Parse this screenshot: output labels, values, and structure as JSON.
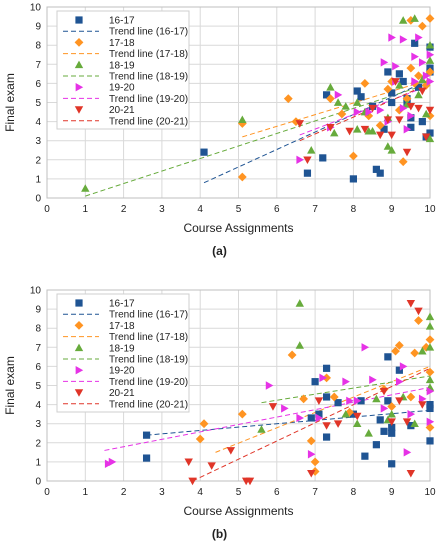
{
  "chart_data": [
    {
      "type": "scatter",
      "caption": "(a)",
      "xlabel": "Course Assignments",
      "ylabel": "Final exam",
      "xlim": [
        0,
        10
      ],
      "ylim": [
        0,
        10
      ],
      "xticks": [
        "0",
        "1",
        "2",
        "3",
        "4",
        "5",
        "6",
        "7",
        "8",
        "9",
        "10"
      ],
      "yticks": [
        "0",
        "1",
        "2",
        "3",
        "4",
        "5",
        "6",
        "7",
        "8",
        "9",
        "10"
      ],
      "grid": true,
      "legend_position": "top-left",
      "series": [
        {
          "name": "16-17",
          "color": "#1f5493",
          "marker": "square",
          "trend_name": "Trend line (16-17)",
          "trend": [
            [
              4.1,
              0.8
            ],
            [
              10,
              6.2
            ]
          ],
          "points": [
            [
              4.1,
              2.4
            ],
            [
              6.8,
              1.3
            ],
            [
              7.2,
              2.1
            ],
            [
              7.3,
              5.4
            ],
            [
              8.0,
              1.0
            ],
            [
              8.1,
              5.6
            ],
            [
              8.2,
              5.3
            ],
            [
              8.5,
              4.8
            ],
            [
              8.6,
              1.5
            ],
            [
              8.7,
              1.3
            ],
            [
              8.8,
              3.6
            ],
            [
              8.9,
              6.6
            ],
            [
              9.0,
              5.5
            ],
            [
              9.2,
              6.5
            ],
            [
              9.4,
              5.0
            ],
            [
              9.4,
              5.2
            ],
            [
              9.5,
              3.7
            ],
            [
              9.5,
              4.2
            ],
            [
              9.6,
              8.1
            ],
            [
              9.7,
              5.8
            ],
            [
              9.8,
              4.0
            ],
            [
              9.9,
              3.2
            ],
            [
              10.0,
              3.4
            ],
            [
              10.0,
              6.6
            ],
            [
              10.0,
              7.9
            ],
            [
              10.0,
              6.8
            ],
            [
              9.0,
              5.0
            ],
            [
              9.3,
              6.1
            ]
          ]
        },
        {
          "name": "17-18",
          "color": "#ff9422",
          "marker": "diamond",
          "trend_name": "Trend line (17-18)",
          "trend": [
            [
              5.1,
              3.2
            ],
            [
              10,
              6.2
            ]
          ],
          "points": [
            [
              5.1,
              1.1
            ],
            [
              5.1,
              3.9
            ],
            [
              6.3,
              5.2
            ],
            [
              6.5,
              4.0
            ],
            [
              7.4,
              5.2
            ],
            [
              7.7,
              4.4
            ],
            [
              8.0,
              2.2
            ],
            [
              8.3,
              6.0
            ],
            [
              8.4,
              4.3
            ],
            [
              8.7,
              3.8
            ],
            [
              8.9,
              5.7
            ],
            [
              9.0,
              6.1
            ],
            [
              9.2,
              4.6
            ],
            [
              9.3,
              1.9
            ],
            [
              9.4,
              5.2
            ],
            [
              9.5,
              6.8
            ],
            [
              9.5,
              9.3
            ],
            [
              9.6,
              6.0
            ],
            [
              9.7,
              6.4
            ],
            [
              9.8,
              9.0
            ],
            [
              9.9,
              5.9
            ],
            [
              10.0,
              9.4
            ],
            [
              10.0,
              6.6
            ],
            [
              10.0,
              4.3
            ]
          ]
        },
        {
          "name": "18-19",
          "color": "#67ab3c",
          "marker": "triangle-up",
          "trend_name": "Trend line (18-19)",
          "trend": [
            [
              1.0,
              0.1
            ],
            [
              10,
              6.0
            ]
          ],
          "points": [
            [
              1.0,
              0.5
            ],
            [
              5.1,
              4.1
            ],
            [
              6.9,
              2.5
            ],
            [
              7.4,
              5.8
            ],
            [
              7.5,
              3.4
            ],
            [
              7.6,
              5.0
            ],
            [
              7.8,
              4.8
            ],
            [
              8.1,
              3.6
            ],
            [
              8.1,
              5.0
            ],
            [
              8.3,
              4.5
            ],
            [
              8.4,
              3.5
            ],
            [
              8.5,
              3.5
            ],
            [
              8.9,
              2.7
            ],
            [
              8.9,
              4.2
            ],
            [
              9.0,
              2.5
            ],
            [
              9.2,
              5.9
            ],
            [
              9.3,
              9.3
            ],
            [
              9.4,
              4.9
            ],
            [
              9.6,
              9.4
            ],
            [
              9.7,
              5.4
            ],
            [
              9.8,
              6.2
            ],
            [
              9.9,
              4.4
            ],
            [
              10.0,
              3.1
            ],
            [
              10.0,
              8.0
            ],
            [
              10.0,
              7.2
            ]
          ]
        },
        {
          "name": "19-20",
          "color": "#e632e6",
          "marker": "triangle-right",
          "trend_name": "Trend line (19-20)",
          "trend": [
            [
              6.6,
              3.3
            ],
            [
              10,
              5.9
            ]
          ],
          "points": [
            [
              6.6,
              2.0
            ],
            [
              7.4,
              3.7
            ],
            [
              7.6,
              5.4
            ],
            [
              8.1,
              4.5
            ],
            [
              8.4,
              4.5
            ],
            [
              8.7,
              4.6
            ],
            [
              8.8,
              7.1
            ],
            [
              8.9,
              4.0
            ],
            [
              9.0,
              8.4
            ],
            [
              9.1,
              6.1
            ],
            [
              9.1,
              6.9
            ],
            [
              9.3,
              4.7
            ],
            [
              9.3,
              8.3
            ],
            [
              9.4,
              3.6
            ],
            [
              9.5,
              4.3
            ],
            [
              9.6,
              7.4
            ],
            [
              9.6,
              6.1
            ],
            [
              9.7,
              8.4
            ],
            [
              9.8,
              7.1
            ],
            [
              9.9,
              6.4
            ],
            [
              10.0,
              7.5
            ],
            [
              10.0,
              6.1
            ]
          ]
        },
        {
          "name": "20-21",
          "color": "#e03528",
          "marker": "triangle-down",
          "trend_name": "Trend line (20-21)",
          "trend": [
            [
              6.6,
              3.0
            ],
            [
              10,
              6.0
            ]
          ],
          "points": [
            [
              6.6,
              3.9
            ],
            [
              6.8,
              2.0
            ],
            [
              7.4,
              3.7
            ],
            [
              7.9,
              3.5
            ],
            [
              8.3,
              3.6
            ],
            [
              8.5,
              4.7
            ],
            [
              8.7,
              3.3
            ],
            [
              8.9,
              4.1
            ],
            [
              9.0,
              3.3
            ],
            [
              9.1,
              6.1
            ],
            [
              9.2,
              4.1
            ],
            [
              9.4,
              2.4
            ],
            [
              9.5,
              4.8
            ],
            [
              9.7,
              4.7
            ],
            [
              9.8,
              5.6
            ],
            [
              9.9,
              3.2
            ],
            [
              10.0,
              4.6
            ]
          ]
        }
      ]
    },
    {
      "type": "scatter",
      "caption": "(b)",
      "xlabel": "Course Assignments",
      "ylabel": "Final exam",
      "xlim": [
        0,
        10
      ],
      "ylim": [
        0,
        10
      ],
      "xticks": [
        "0",
        "1",
        "2",
        "3",
        "4",
        "5",
        "6",
        "7",
        "8",
        "9",
        "10"
      ],
      "yticks": [
        "0",
        "1",
        "2",
        "3",
        "4",
        "5",
        "6",
        "7",
        "8",
        "9",
        "10"
      ],
      "grid": true,
      "legend_position": "top-left",
      "series": [
        {
          "name": "16-17",
          "color": "#1f5493",
          "marker": "square",
          "trend_name": "Trend line (16-17)",
          "trend": [
            [
              2.6,
              2.4
            ],
            [
              10,
              3.7
            ]
          ],
          "points": [
            [
              2.6,
              2.4
            ],
            [
              2.6,
              1.2
            ],
            [
              6.9,
              3.3
            ],
            [
              7.0,
              5.2
            ],
            [
              7.1,
              3.5
            ],
            [
              7.3,
              2.3
            ],
            [
              7.3,
              5.9
            ],
            [
              7.3,
              4.4
            ],
            [
              7.6,
              4.1
            ],
            [
              8.0,
              3.5
            ],
            [
              8.2,
              4.2
            ],
            [
              8.3,
              1.3
            ],
            [
              8.6,
              1.9
            ],
            [
              8.7,
              3.2
            ],
            [
              8.8,
              2.6
            ],
            [
              8.9,
              4.2
            ],
            [
              8.9,
              6.5
            ],
            [
              9.0,
              2.8
            ],
            [
              9.0,
              2.5
            ],
            [
              9.0,
              0.9
            ],
            [
              9.2,
              5.8
            ],
            [
              9.5,
              2.9
            ],
            [
              10.0,
              2.1
            ],
            [
              10.0,
              4.0
            ],
            [
              10.0,
              3.8
            ]
          ]
        },
        {
          "name": "17-18",
          "color": "#ff9422",
          "marker": "diamond",
          "trend_name": "Trend line (17-18)",
          "trend": [
            [
              4.4,
              1.5
            ],
            [
              10,
              6.0
            ]
          ],
          "points": [
            [
              4.1,
              3.0
            ],
            [
              4.0,
              2.2
            ],
            [
              5.1,
              3.5
            ],
            [
              6.4,
              6.6
            ],
            [
              6.7,
              4.3
            ],
            [
              6.9,
              2.1
            ],
            [
              7.0,
              1.0
            ],
            [
              7.0,
              0.5
            ],
            [
              7.3,
              5.4
            ],
            [
              7.5,
              4.4
            ],
            [
              7.9,
              3.6
            ],
            [
              8.8,
              4.8
            ],
            [
              9.0,
              3.9
            ],
            [
              9.1,
              6.8
            ],
            [
              9.2,
              7.1
            ],
            [
              9.5,
              4.4
            ],
            [
              9.6,
              6.7
            ],
            [
              9.7,
              8.4
            ],
            [
              9.9,
              7.0
            ],
            [
              10.0,
              7.4
            ],
            [
              10.0,
              5.7
            ],
            [
              10.0,
              2.8
            ]
          ]
        },
        {
          "name": "18-19",
          "color": "#67ab3c",
          "marker": "triangle-up",
          "trend_name": "Trend line (18-19)",
          "trend": [
            [
              5.6,
              4.1
            ],
            [
              10,
              5.5
            ]
          ],
          "points": [
            [
              5.6,
              2.7
            ],
            [
              6.6,
              9.3
            ],
            [
              6.6,
              7.1
            ],
            [
              7.8,
              3.5
            ],
            [
              8.1,
              3.0
            ],
            [
              8.4,
              2.5
            ],
            [
              8.6,
              4.3
            ],
            [
              8.9,
              3.2
            ],
            [
              9.0,
              3.5
            ],
            [
              9.3,
              4.4
            ],
            [
              9.6,
              3.0
            ],
            [
              9.8,
              6.8
            ],
            [
              10.0,
              8.6
            ],
            [
              10.0,
              8.1
            ],
            [
              10.0,
              7.0
            ],
            [
              10.0,
              5.3
            ],
            [
              10.0,
              4.9
            ]
          ]
        },
        {
          "name": "19-20",
          "color": "#e632e6",
          "marker": "triangle-right",
          "trend_name": "Trend line (19-20)",
          "trend": [
            [
              1.5,
              1.6
            ],
            [
              10,
              4.9
            ]
          ],
          "points": [
            [
              1.6,
              0.9
            ],
            [
              1.7,
              1.0
            ],
            [
              5.8,
              5.0
            ],
            [
              6.2,
              3.8
            ],
            [
              6.6,
              3.3
            ],
            [
              6.9,
              1.4
            ],
            [
              7.1,
              3.3
            ],
            [
              7.2,
              5.4
            ],
            [
              7.8,
              5.2
            ],
            [
              7.9,
              4.2
            ],
            [
              8.1,
              4.2
            ],
            [
              8.3,
              7.0
            ],
            [
              8.5,
              5.3
            ],
            [
              8.8,
              3.8
            ],
            [
              9.2,
              5.2
            ],
            [
              9.3,
              6.0
            ],
            [
              9.4,
              1.5
            ],
            [
              9.5,
              3.5
            ],
            [
              9.8,
              4.3
            ],
            [
              10.0,
              4.7
            ],
            [
              10.0,
              3.1
            ]
          ]
        },
        {
          "name": "20-21",
          "color": "#e03528",
          "marker": "triangle-down",
          "trend_name": "Trend line (20-21)",
          "trend": [
            [
              3.8,
              0.0
            ],
            [
              10,
              5.9
            ]
          ],
          "points": [
            [
              3.7,
              1.0
            ],
            [
              3.8,
              0.0
            ],
            [
              4.3,
              0.8
            ],
            [
              4.8,
              1.6
            ],
            [
              5.2,
              0.0
            ],
            [
              5.3,
              0.0
            ],
            [
              5.9,
              3.9
            ],
            [
              6.9,
              0.4
            ],
            [
              7.1,
              4.2
            ],
            [
              7.3,
              2.9
            ],
            [
              7.6,
              3.0
            ],
            [
              8.1,
              3.4
            ],
            [
              8.8,
              4.7
            ],
            [
              9.0,
              3.1
            ],
            [
              9.2,
              4.2
            ],
            [
              9.4,
              3.1
            ],
            [
              9.5,
              0.4
            ],
            [
              9.5,
              9.3
            ],
            [
              9.7,
              8.9
            ],
            [
              9.8,
              4.0
            ]
          ]
        }
      ]
    }
  ]
}
